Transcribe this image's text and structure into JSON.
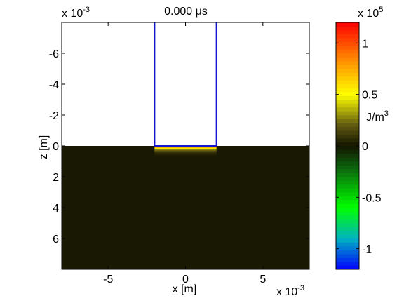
{
  "chart_data": {
    "type": "heatmap",
    "title": "0.000 μs",
    "xlabel": "x [m]",
    "ylabel": "z [m]",
    "x_multiplier": "x 10",
    "x_multiplier_exp": "-3",
    "z_multiplier": "x 10",
    "z_multiplier_exp": "-3",
    "xlim": [
      -8,
      8
    ],
    "zlim": [
      -8,
      8
    ],
    "z_reversed": true,
    "x_ticks": [
      -5,
      0,
      5
    ],
    "x_tick_labels": [
      "-5",
      "0",
      "5"
    ],
    "z_ticks": [
      -6,
      -4,
      -2,
      0,
      2,
      4,
      6
    ],
    "z_tick_labels": [
      "-6",
      "-4",
      "-2",
      "0",
      "2",
      "4",
      "6"
    ],
    "background_color": "#191802",
    "upper_region_color": "#ffffff",
    "transducer_outline": {
      "x_range": [
        -2,
        2
      ],
      "z_range": [
        -8,
        0
      ],
      "color": "#1515d0"
    },
    "energy_layer": {
      "x_range": [
        -2,
        2
      ],
      "z_range": [
        0,
        0.7
      ],
      "peak_value": 1.2,
      "peak_color": "#ff1a00"
    },
    "colorbar": {
      "multiplier": "x 10",
      "multiplier_exp": "5",
      "unit": "J/m",
      "unit_exp": "3",
      "range": [
        -1.2,
        1.2
      ],
      "ticks": [
        -1,
        -0.5,
        0,
        0.5,
        1
      ],
      "tick_labels": [
        "-1",
        "-0.5",
        "0",
        "0.5",
        "1"
      ],
      "colormap": [
        [
          -1.2,
          "#0000ff"
        ],
        [
          -0.9,
          "#00b4c0"
        ],
        [
          -0.6,
          "#00ff00"
        ],
        [
          -0.2,
          "#0d600d"
        ],
        [
          0.0,
          "#141400"
        ],
        [
          0.2,
          "#605a12"
        ],
        [
          0.5,
          "#ffff00"
        ],
        [
          0.8,
          "#ff9900"
        ],
        [
          1.2,
          "#ff0000"
        ]
      ]
    }
  }
}
